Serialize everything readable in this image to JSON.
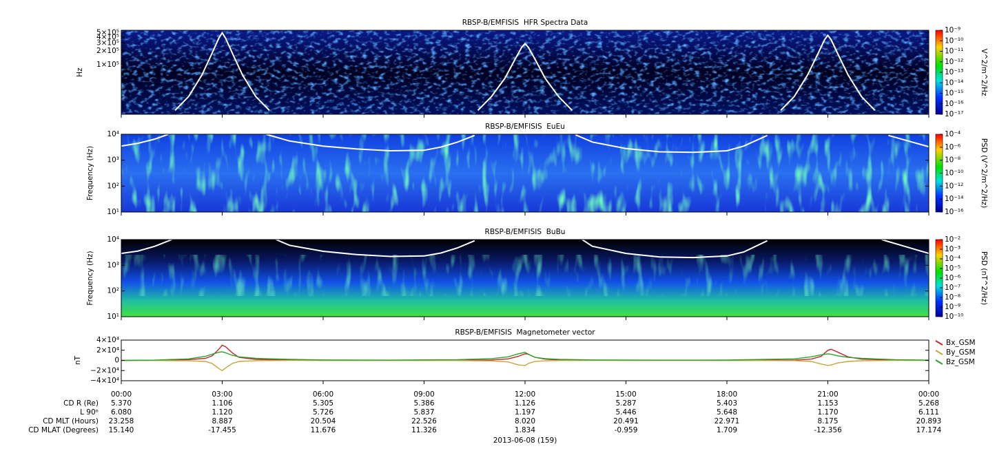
{
  "chart_data": [
    {
      "type": "spectrogram",
      "title": "RBSP-B/EMFISIS  HFR Spectra Data",
      "ylabel": "Hz",
      "zlabel": "V^2/m^2/Hz",
      "log_scale": true,
      "ylim": [
        8200,
        567000
      ],
      "yticks": [
        {
          "value": 100000,
          "label": "1×10⁵"
        },
        {
          "value": 200000,
          "label": "2×10⁵"
        },
        {
          "value": 300000,
          "label": "3×10⁵"
        },
        {
          "value": 400000,
          "label": "4×10⁵"
        },
        {
          "value": 500000,
          "label": "5×10⁵"
        }
      ],
      "zlim": [
        1e-17,
        1e-09
      ],
      "zticks": [
        {
          "value": 1e-17,
          "label": "10⁻¹⁷"
        },
        {
          "value": 1e-16,
          "label": "10⁻¹⁶"
        },
        {
          "value": 1e-15,
          "label": "10⁻¹⁵"
        },
        {
          "value": 1e-14,
          "label": "10⁻¹⁴"
        },
        {
          "value": 1e-13,
          "label": "10⁻¹³"
        },
        {
          "value": 1e-12,
          "label": "10⁻¹²"
        },
        {
          "value": 1e-11,
          "label": "10⁻¹¹"
        },
        {
          "value": 1e-10,
          "label": "10⁻¹⁰"
        },
        {
          "value": 1e-09,
          "label": "10⁻⁹"
        }
      ],
      "series": [
        {
          "color": "#ffffff",
          "x": [
            1.6,
            2,
            2.4,
            2.7,
            2.9,
            3,
            3.1,
            3.3,
            3.6,
            4,
            4.4,
            7,
            10.6,
            11,
            11.4,
            11.7,
            11.9,
            12,
            12.1,
            12.3,
            12.6,
            13,
            13.4,
            16,
            19.6,
            20,
            20.4,
            20.7,
            20.9,
            21,
            21.1,
            21.3,
            21.6,
            22,
            22.4
          ],
          "values": [
            10000,
            20000,
            60000,
            180000,
            380000,
            500000,
            380000,
            180000,
            60000,
            20000,
            10000,
            null,
            10000,
            20000,
            50000,
            130000,
            240000,
            290000,
            240000,
            130000,
            50000,
            20000,
            10000,
            null,
            10000,
            20000,
            60000,
            170000,
            350000,
            440000,
            350000,
            170000,
            60000,
            20000,
            10000
          ]
        }
      ]
    },
    {
      "type": "spectrogram",
      "title": "RBSP-B/EMFISIS  EuEu",
      "ylabel": "Frequency (Hz)",
      "zlabel": "PSD (V^2/m^2/Hz)",
      "log_scale": true,
      "ylim": [
        10,
        10000
      ],
      "yticks": [
        {
          "value": 10,
          "label": "10¹"
        },
        {
          "value": 100,
          "label": "10²"
        },
        {
          "value": 1000,
          "label": "10³"
        },
        {
          "value": 10000,
          "label": "10⁴"
        }
      ],
      "zlim": [
        1e-16,
        0.0001
      ],
      "zticks": [
        {
          "value": 1e-16,
          "label": "10⁻¹⁶"
        },
        {
          "value": 1e-14,
          "label": "10⁻¹⁴"
        },
        {
          "value": 1e-12,
          "label": "10⁻¹²"
        },
        {
          "value": 1e-10,
          "label": "10⁻¹⁰"
        },
        {
          "value": 1e-08,
          "label": "10⁻⁸"
        },
        {
          "value": 1e-06,
          "label": "10⁻⁶"
        },
        {
          "value": 0.0001,
          "label": "10⁻⁴"
        }
      ],
      "series": [
        {
          "color": "#ffffff",
          "x": [
            0,
            0.5,
            1,
            1.4,
            2.5,
            4.3,
            5,
            6,
            7,
            8,
            9,
            9.5,
            10,
            10.5,
            12,
            13.5,
            14,
            15,
            16,
            17,
            18,
            18.5,
            19.2,
            21,
            22.8,
            23.5,
            24
          ],
          "values": [
            3500,
            4500,
            6500,
            10000,
            null,
            10000,
            5500,
            3500,
            2700,
            2300,
            2400,
            3200,
            5000,
            9000,
            null,
            9500,
            5000,
            2800,
            2100,
            2000,
            2300,
            3500,
            9000,
            null,
            9000,
            5000,
            3300
          ]
        }
      ]
    },
    {
      "type": "spectrogram",
      "title": "RBSP-B/EMFISIS  BuBu",
      "ylabel": "Frequency (Hz)",
      "zlabel": "PSD (nT^2/Hz)",
      "log_scale": true,
      "ylim": [
        10,
        10000
      ],
      "yticks": [
        {
          "value": 10,
          "label": "10¹"
        },
        {
          "value": 100,
          "label": "10²"
        },
        {
          "value": 1000,
          "label": "10³"
        },
        {
          "value": 10000,
          "label": "10⁴"
        }
      ],
      "zlim": [
        1e-10,
        0.01
      ],
      "zticks": [
        {
          "value": 1e-10,
          "label": "10⁻¹⁰"
        },
        {
          "value": 1e-09,
          "label": "10⁻⁹"
        },
        {
          "value": 1e-08,
          "label": "10⁻⁸"
        },
        {
          "value": 1e-07,
          "label": "10⁻⁷"
        },
        {
          "value": 1e-06,
          "label": "10⁻⁶"
        },
        {
          "value": 1e-05,
          "label": "10⁻⁵"
        },
        {
          "value": 0.0001,
          "label": "10⁻⁴"
        },
        {
          "value": 0.001,
          "label": "10⁻³"
        },
        {
          "value": 0.01,
          "label": "10⁻²"
        }
      ],
      "series": [
        {
          "color": "#ffffff",
          "x": [
            0,
            0.5,
            1,
            1.5,
            2.5,
            4.6,
            5,
            6,
            7,
            8,
            9,
            9.5,
            10,
            10.5,
            12,
            13.7,
            14,
            15,
            16,
            17,
            18,
            18.5,
            19.2,
            21,
            22.6,
            23.5,
            24
          ],
          "values": [
            2900,
            3600,
            5500,
            10000,
            null,
            10000,
            6000,
            3500,
            2600,
            2200,
            2300,
            3000,
            4800,
            9000,
            null,
            10000,
            5500,
            2900,
            2100,
            2000,
            2300,
            3300,
            9000,
            null,
            10000,
            4500,
            2900
          ]
        }
      ]
    },
    {
      "type": "line",
      "title": "RBSP-B/EMFISIS  Magnetometer vector",
      "ylabel": "nT",
      "legend": "right",
      "xlim": [
        0,
        24
      ],
      "xticks": [
        {
          "value": 0,
          "label": "00:00"
        },
        {
          "value": 3,
          "label": "03:00"
        },
        {
          "value": 6,
          "label": "06:00"
        },
        {
          "value": 9,
          "label": "09:00"
        },
        {
          "value": 12,
          "label": "12:00"
        },
        {
          "value": 15,
          "label": "15:00"
        },
        {
          "value": 18,
          "label": "18:00"
        },
        {
          "value": 21,
          "label": "21:00"
        },
        {
          "value": 24,
          "label": "00:00"
        }
      ],
      "ylim": [
        -40000,
        40000
      ],
      "yticks": [
        {
          "value": -40000,
          "label": "−4×10⁴"
        },
        {
          "value": -20000,
          "label": "−2×10⁴"
        },
        0,
        {
          "value": 20000,
          "label": "2×10⁴"
        },
        {
          "value": 40000,
          "label": "4×10⁴"
        }
      ],
      "x": [
        0,
        1,
        2,
        2.5,
        2.7,
        2.9,
        3.0,
        3.1,
        3.3,
        3.5,
        4,
        5,
        6,
        8,
        10,
        11,
        11.5,
        11.8,
        12,
        12.1,
        12.3,
        12.6,
        13,
        14,
        16,
        18,
        20,
        20.5,
        20.8,
        21,
        21.1,
        21.3,
        21.6,
        22,
        23,
        24
      ],
      "series": [
        {
          "name": "Bx_GSM",
          "color": "#c0282a",
          "values": [
            0,
            200,
            1500,
            4000,
            9000,
            22000,
            30000,
            27000,
            15000,
            6000,
            2000,
            500,
            200,
            100,
            300,
            1000,
            3000,
            8000,
            13000,
            12000,
            6000,
            2500,
            800,
            300,
            100,
            100,
            500,
            2500,
            8000,
            20000,
            22000,
            16000,
            7000,
            2500,
            500,
            200
          ]
        },
        {
          "name": "By_GSM",
          "color": "#c8a43c",
          "values": [
            0,
            -200,
            -800,
            -2000,
            -6000,
            -16000,
            -20000,
            -15000,
            -6000,
            -2000,
            -500,
            -200,
            -100,
            0,
            -300,
            -1000,
            -3000,
            -9000,
            -10000,
            -6000,
            -2000,
            -800,
            -300,
            -100,
            0,
            0,
            -400,
            -2000,
            -7000,
            -10000,
            -9000,
            -5000,
            -2000,
            -700,
            -200,
            0
          ]
        },
        {
          "name": "Bz_GSM",
          "color": "#2ca02c",
          "values": [
            0,
            500,
            3000,
            8000,
            12000,
            16000,
            17000,
            15000,
            10000,
            7000,
            4000,
            2000,
            1000,
            500,
            1500,
            3500,
            7000,
            13000,
            16000,
            12000,
            6000,
            3500,
            2000,
            1000,
            500,
            700,
            3000,
            7000,
            11000,
            13000,
            12000,
            9000,
            6000,
            4000,
            1500,
            500
          ]
        }
      ]
    }
  ],
  "ephemeris": {
    "rows": [
      {
        "label": "CD R (Re)",
        "values": [
          "5.370",
          "1.106",
          "5.305",
          "5.386",
          "1.126",
          "5.287",
          "5.403",
          "1.153",
          "5.268"
        ]
      },
      {
        "label": "L 90ᵒ",
        "values": [
          "6.080",
          "1.120",
          "5.726",
          "5.837",
          "1.197",
          "5.446",
          "5.648",
          "1.170",
          "6.111"
        ]
      },
      {
        "label": "CD MLT (Hours)",
        "values": [
          "23.258",
          "8.887",
          "20.504",
          "22.526",
          "8.020",
          "20.491",
          "22.971",
          "8.175",
          "20.893"
        ]
      },
      {
        "label": "CD MLAT (Degrees)",
        "values": [
          "15.140",
          "-17.455",
          "11.676",
          "11.326",
          "1.834",
          "-0.959",
          "1.709",
          "-12.356",
          "17.174"
        ]
      }
    ],
    "date": "2013-06-08 (159)"
  }
}
